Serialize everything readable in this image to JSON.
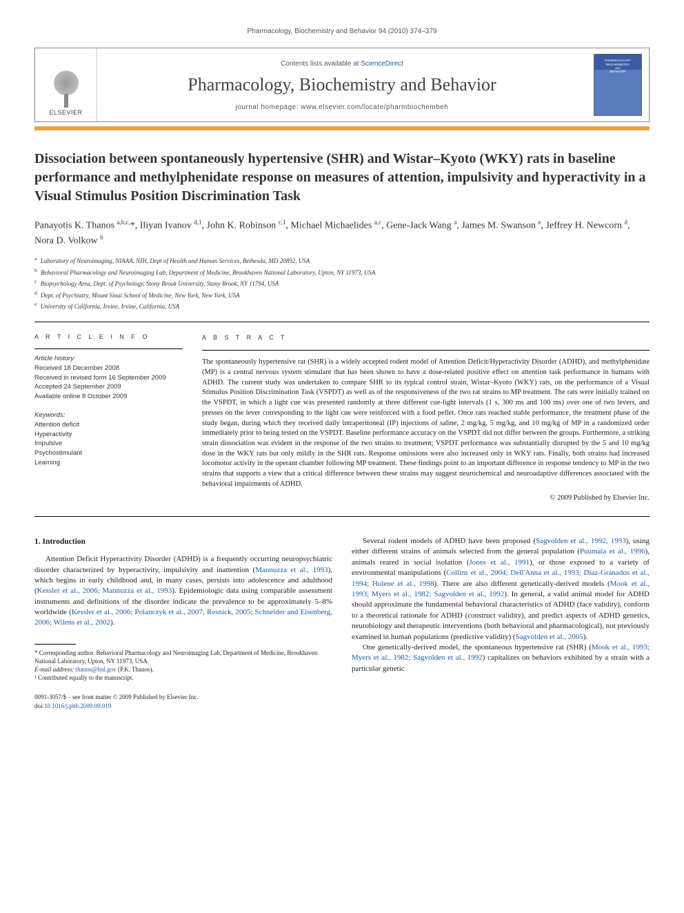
{
  "running_header": "Pharmacology, Biochemistry and Behavior 94 (2010) 374–379",
  "masthead": {
    "publisher": "ELSEVIER",
    "contents_prefix": "Contents lists available at ",
    "contents_link": "ScienceDirect",
    "journal_name": "Pharmacology, Biochemistry and Behavior",
    "homepage_prefix": "journal homepage: ",
    "homepage_url": "www.elsevier.com/locate/pharmbiochembeh",
    "cover_line1": "PHARMACOLOGY",
    "cover_line2": "BIOCHEMISTRY",
    "cover_line3": "BEHAVIOR",
    "cover_and": "AND"
  },
  "title": "Dissociation between spontaneously hypertensive (SHR) and Wistar–Kyoto (WKY) rats in baseline performance and methylphenidate response on measures of attention, impulsivity and hyperactivity in a Visual Stimulus Position Discrimination Task",
  "authors_html": "Panayotis K. Thanos <sup>a,b,c,</sup>*, Iliyan Ivanov <sup>d,1</sup>, John K. Robinson <sup>c,1</sup>, Michael Michaelides <sup>a,c</sup>, Gene-Jack Wang <sup>a</sup>, James M. Swanson <sup>e</sup>, Jeffrey H. Newcorn <sup>d</sup>, Nora D. Volkow <sup>b</sup>",
  "affiliations": [
    {
      "sup": "a",
      "text": "Laboratory of Neuroimaging, NIAAA, NIH, Dept of Health and Human Services, Bethesda, MD 20892, USA"
    },
    {
      "sup": "b",
      "text": "Behavioral Pharmacology and Neuroimaging Lab, Department of Medicine, Brookhaven National Laboratory, Upton, NY 11973, USA"
    },
    {
      "sup": "c",
      "text": "Biopsychology Area, Dept. of Psychology, Stony Brook University, Stony Brook, NY 11794, USA"
    },
    {
      "sup": "d",
      "text": "Dept. of Psychiatry, Mount Sinai School of Medicine, New York, New York, USA"
    },
    {
      "sup": "e",
      "text": "University of California, Irvine, Irvine, California, USA"
    }
  ],
  "labels": {
    "article_info": "A R T I C L E   I N F O",
    "abstract": "A B S T R A C T",
    "history": "Article history:",
    "keywords": "Keywords:"
  },
  "history": [
    "Received 18 December 2008",
    "Received in revised form 16 September 2009",
    "Accepted 24 September 2009",
    "Available online 8 October 2009"
  ],
  "keywords": [
    "Attention deficit",
    "Hyperactivity",
    "Impulsive",
    "Psychostimulant",
    "Learning"
  ],
  "abstract": "The spontaneously hypertensive rat (SHR) is a widely accepted rodent model of Attention Deficit/Hyperactivity Disorder (ADHD), and methylphenidate (MP) is a central nervous system stimulant that has been shown to have a dose-related positive effect on attention task performance in humans with ADHD. The current study was undertaken to compare SHR to its typical control strain, Wistar–Kyoto (WKY) rats, on the performance of a Visual Stimulus Position Discrimination Task (VSPDT) as well as of the responsiveness of the two rat strains to MP treatment. The rats were initially trained on the VSPDT, in which a light cue was presented randomly at three different cue-light intervals (1 s, 300 ms and 100 ms) over one of two levers, and presses on the lever corresponding to the light cue were reinforced with a food pellet. Once rats reached stable performance, the treatment phase of the study began, during which they received daily intraperitoneal (IP) injections of saline, 2 mg/kg, 5 mg/kg, and 10 mg/kg of MP in a randomized order immediately prior to being tested on the VSPDT. Baseline performance accuracy on the VSPDT did not differ between the groups. Furthermore, a striking strain dissociation was evident in the response of the two strains to treatment; VSPDT performance was substantially disrupted by the 5 and 10 mg/kg dose in the WKY rats but only mildly in the SHR rats. Response omissions were also increased only in WKY rats. Finally, both strains had increased locomotor activity in the operant chamber following MP treatment. These findings point to an important difference in response tendency to MP in the two strains that supports a view that a critical difference between these strains may suggest neurochemical and neuroadaptive differences associated with the behavioral impairments of ADHD.",
  "copyright": "© 2009 Published by Elsevier Inc.",
  "intro_heading": "1. Introduction",
  "left_col": {
    "p1a": "Attention Deficit Hyperactivity Disorder (ADHD) is a frequently occurring neuropsychiatric disorder characterized by hyperactivity, impulsivity and inattention (",
    "p1_cite1": "Mannuzza et al., 1993",
    "p1b": "), which begins in early childhood and, in many cases, persists into adolescence and adulthood (",
    "p1_cite2": "Kessler et al., 2006; Mannuzza et al., 1993",
    "p1c": "). Epidemiologic data using comparable assessment instruments and definitions of the disorder indicate the prevalence to be approximately 5–8% worldwide (",
    "p1_cite3": "Kessler et al., 2006; Polanczyk et al., 2007; Resnick, 2005; Schneider and Eisenberg, 2006; Wilens et al., 2002",
    "p1d": ")."
  },
  "right_col": {
    "p1a": "Several rodent models of ADHD have been proposed (",
    "p1_cite1": "Sagvolden et al., 1992, 1993",
    "p1b": "), using either different strains of animals selected from the general population (",
    "p1_cite2": "Puumala et al., 1996",
    "p1c": "), animals reared in social isolation (",
    "p1_cite3": "Jones et al., 1991",
    "p1d": "), or those exposed to a variety of environmental manipulations (",
    "p1_cite4": "Collins et al., 2004; Dell'Anna et al., 1993; Diaz-Granados et al., 1994; Holene et al., 1998",
    "p1e": "). There are also different genetically-derived models (",
    "p1_cite5": "Mook et al., 1993; Myers et al., 1982; Sagvolden et al., 1992",
    "p1f": "). In general, a valid animal model for ADHD should approximate the fundamental behavioral characteristics of ADHD (face validity), conform to a theoretical rationale for ADHD (construct validity), and predict aspects of ADHD genetics, neurobiology and therapeutic interventions (both behavioral and pharmacological), not previously examined in human populations (predictive validity) (",
    "p1_cite6": "Sagvolden et al., 2005",
    "p1g": ").",
    "p2a": "One genetically-derived model, the spontaneous hypertensive rat (SHR) (",
    "p2_cite1": "Mook et al., 1993; Myers et al., 1982; Sagvolden et al., 1992",
    "p2b": ") capitalizes on behaviors exhibited by a strain with a particular genetic"
  },
  "footnotes": {
    "corr": "* Corresponding author. Behavioral Pharmacology and Neuroimaging Lab, Department of Medicine, Brookhaven National Laboratory, Upton, NY 11973, USA.",
    "email_label": "E-mail address: ",
    "email": "thanos@bnl.gov",
    "email_who": " (P.K. Thanos).",
    "contrib": "¹ Contributed equally to the manuscript."
  },
  "footer": {
    "line1": "0091-3057/$ – see front matter © 2009 Published by Elsevier Inc.",
    "doi_prefix": "doi:",
    "doi": "10.1016/j.pbb.2009.09.019"
  },
  "colors": {
    "accent_orange": "#e8a33d",
    "link_blue": "#1a5caa",
    "cover_blue": "#3b5ba5"
  }
}
